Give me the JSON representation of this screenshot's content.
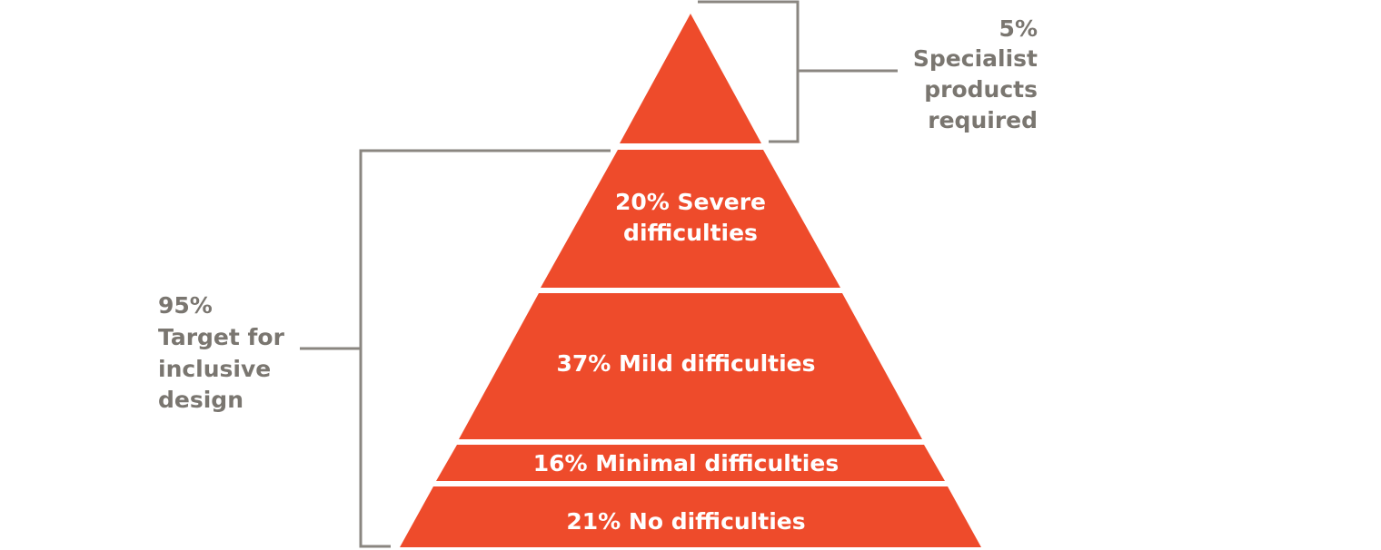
{
  "pyramid": {
    "fill_color": "#ee4b2b",
    "text_color": "#ffffff",
    "tiers": [
      {
        "label_lines": []
      },
      {
        "label_lines": [
          "20% Severe",
          "difficulties"
        ]
      },
      {
        "label_lines": [
          "37% Mild difficulties"
        ]
      },
      {
        "label_lines": [
          "16% Minimal difficulties"
        ]
      },
      {
        "label_lines": [
          "21% No difficulties"
        ]
      }
    ]
  },
  "annotations": {
    "color": "#7a7670",
    "top_right": {
      "lines": [
        "5%",
        "Specialist",
        "products",
        "required"
      ]
    },
    "left": {
      "lines": [
        "95%",
        "Target for",
        "inclusive",
        "design"
      ]
    }
  }
}
